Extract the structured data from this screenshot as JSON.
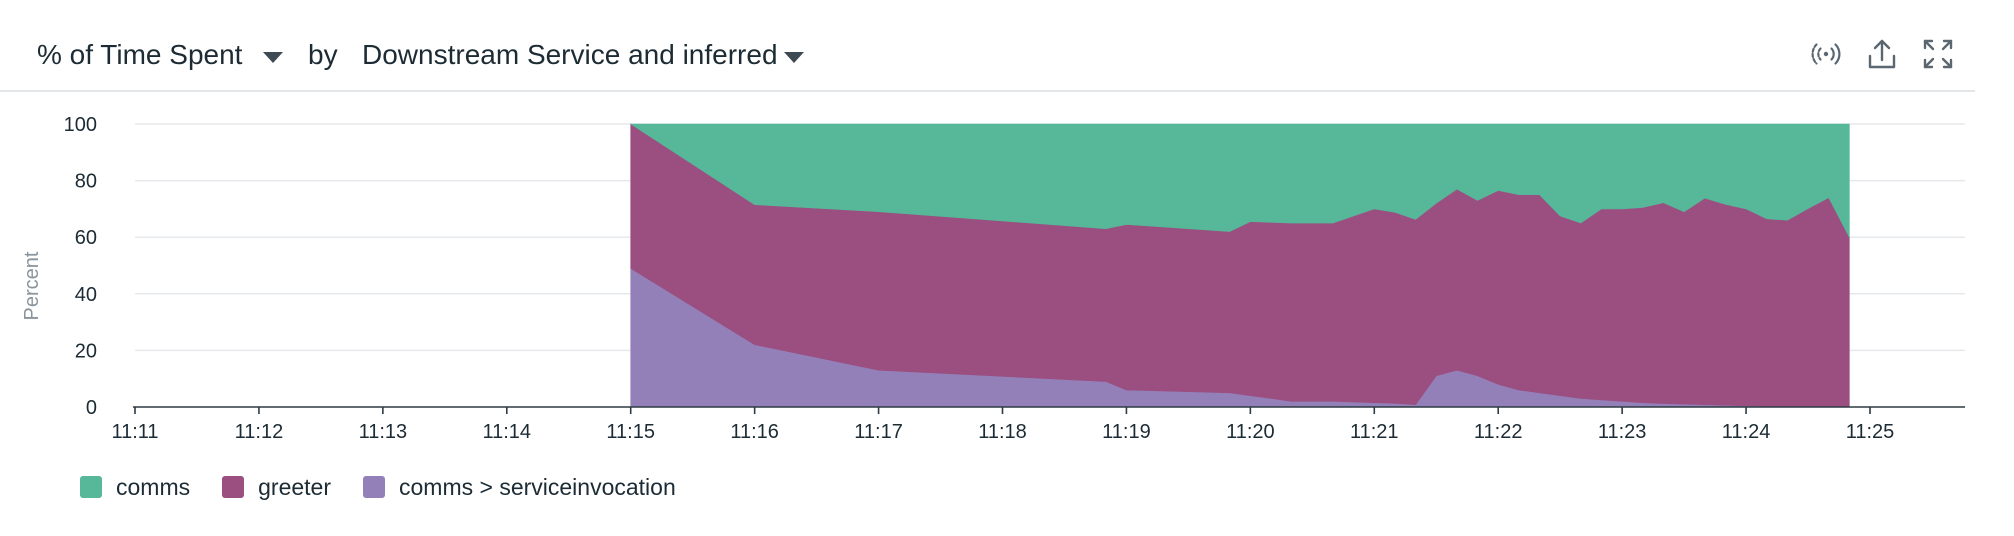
{
  "header": {
    "metric_label": "% of Time Spent",
    "by_label": "by",
    "group_label": "Downstream Service and inferred",
    "icons": [
      "signal-icon",
      "export-icon",
      "fullscreen-icon"
    ]
  },
  "chart_data": {
    "type": "area",
    "stacked": true,
    "ylabel": "Percent",
    "ylim": [
      0,
      100
    ],
    "yticks": [
      0,
      20,
      40,
      60,
      80,
      100
    ],
    "xlim": [
      "11:11",
      "11:25"
    ],
    "xticks": [
      "11:11",
      "11:12",
      "11:13",
      "11:14",
      "11:15",
      "11:16",
      "11:17",
      "11:18",
      "11:19",
      "11:20",
      "11:21",
      "11:22",
      "11:23",
      "11:24",
      "11:25"
    ],
    "grid": true,
    "legend": "bottom-left",
    "x": [
      "11:15:00",
      "11:16:00",
      "11:17:00",
      "11:18:50",
      "11:19:00",
      "11:19:50",
      "11:20:00",
      "11:20:20",
      "11:20:40",
      "11:21:00",
      "11:21:10",
      "11:21:20",
      "11:21:30",
      "11:21:40",
      "11:21:50",
      "11:22:00",
      "11:22:10",
      "11:22:20",
      "11:22:30",
      "11:22:40",
      "11:22:50",
      "11:23:00",
      "11:23:10",
      "11:23:20",
      "11:23:30",
      "11:23:40",
      "11:23:50",
      "11:24:00",
      "11:24:10",
      "11:24:20",
      "11:24:30",
      "11:24:40",
      "11:24:50"
    ],
    "series": [
      {
        "name": "comms > serviceinvocation",
        "color": "#9480b9",
        "values": [
          49,
          22,
          13,
          9,
          6,
          5,
          4,
          2,
          2,
          1.5,
          1.3,
          0.8,
          11,
          13,
          11,
          8,
          6,
          5,
          4,
          3,
          2.5,
          2,
          1.5,
          1.2,
          1,
          0.8,
          0.6,
          0.4,
          0.3,
          0.2,
          0.1,
          0.1,
          0
        ]
      },
      {
        "name": "greeter",
        "color": "#9a4f80",
        "values": [
          51,
          49.5,
          56,
          54,
          58.5,
          57,
          61.5,
          63,
          63,
          68.5,
          67.5,
          65.5,
          61,
          64,
          62,
          68.5,
          69,
          70,
          63.5,
          62,
          67.5,
          68,
          69,
          71,
          68,
          73,
          71,
          69.6,
          66.2,
          65.8,
          70,
          73.9,
          60
        ]
      },
      {
        "name": "comms",
        "color": "#56b799",
        "values": [
          0,
          28.5,
          31,
          37,
          35.5,
          38,
          34.5,
          35,
          35,
          30,
          31.2,
          33.7,
          28,
          23,
          27,
          23.5,
          25,
          25,
          32.5,
          35,
          30,
          30,
          29.5,
          27.8,
          31,
          26.2,
          28.4,
          30,
          33.5,
          34,
          29.9,
          26,
          40
        ]
      }
    ]
  }
}
